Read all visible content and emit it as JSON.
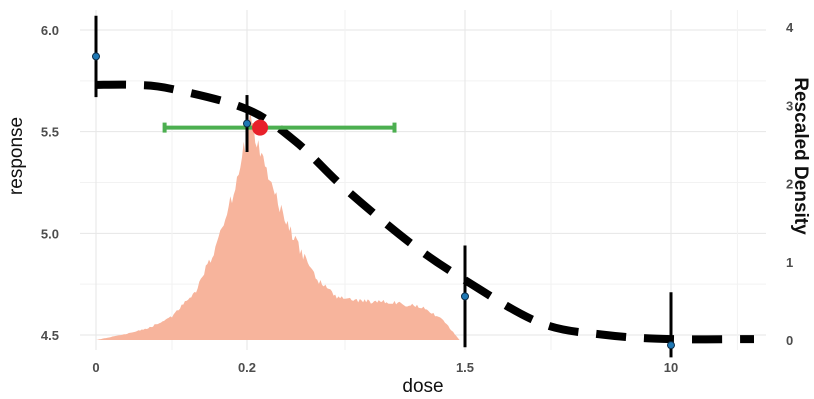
{
  "chart_data": {
    "type": "line",
    "xlabel": "dose",
    "ylabel": "response",
    "y2label": "Rescaled Density",
    "x_tick_labels": [
      "0",
      "0.2",
      "1.5",
      "10"
    ],
    "y_ticks": [
      4.5,
      5.0,
      5.5,
      6.0
    ],
    "y_tick_labels": [
      "4.5",
      "5.0",
      "5.5",
      "6.0"
    ],
    "y2_ticks": [
      0,
      1,
      2,
      3,
      4
    ],
    "y2_tick_labels": [
      "0",
      "1",
      "2",
      "3",
      "4"
    ],
    "ylim": [
      4.47,
      6.07
    ],
    "y2lim": [
      0,
      4.07
    ],
    "grid": true,
    "colors": {
      "curve": "#000000",
      "observed": "#1f78b4",
      "interval": "#4caf50",
      "estimate": "#e8202a",
      "density": "#f7b49c"
    },
    "series": [
      {
        "type": "dashed-line",
        "points": [
          {
            "dose": "0",
            "response": 5.73
          },
          {
            "dose": "0.05",
            "response": 5.73
          },
          {
            "dose": "0.1",
            "response": 5.71
          },
          {
            "dose": "0.2",
            "response": 5.61
          },
          {
            "dose": "0.35",
            "response": 5.45
          },
          {
            "dose": "0.6",
            "response": 5.22
          },
          {
            "dose": "1.0",
            "response": 4.95
          },
          {
            "dose": "1.5",
            "response": 4.77
          },
          {
            "dose": "3",
            "response": 4.56
          },
          {
            "dose": "6",
            "response": 4.5
          },
          {
            "dose": "10",
            "response": 4.48
          },
          {
            "dose": "20",
            "response": 4.48
          }
        ]
      },
      {
        "type": "points-with-error-bars",
        "points": [
          {
            "dose": "0",
            "response": 5.87,
            "lower": 5.67,
            "upper": 6.07
          },
          {
            "dose": "0.2",
            "response": 5.54,
            "lower": 5.4,
            "upper": 5.68
          },
          {
            "dose": "1.5",
            "response": 4.69,
            "lower": 4.44,
            "upper": 4.94
          },
          {
            "dose": "10",
            "response": 4.45,
            "lower": 4.39,
            "upper": 4.71
          }
        ]
      },
      {
        "type": "horizontal-interval",
        "response": 5.52,
        "from_dose": "0.09",
        "to_dose": "0.9"
      },
      {
        "type": "point-estimate",
        "dose": "0.24",
        "response": 5.52
      },
      {
        "type": "density-histogram",
        "axis": "right",
        "points": [
          {
            "dose": "0",
            "density": 0.0
          },
          {
            "dose": "0.04",
            "density": 0.08
          },
          {
            "dose": "0.07",
            "density": 0.16
          },
          {
            "dose": "0.1",
            "density": 0.3
          },
          {
            "dose": "0.13",
            "density": 0.6
          },
          {
            "dose": "0.16",
            "density": 1.2
          },
          {
            "dose": "0.18",
            "density": 1.8
          },
          {
            "dose": "0.2",
            "density": 2.6
          },
          {
            "dose": "0.21",
            "density": 2.85
          },
          {
            "dose": "0.23",
            "density": 2.55
          },
          {
            "dose": "0.25",
            "density": 2.35
          },
          {
            "dose": "0.28",
            "density": 1.9
          },
          {
            "dose": "0.32",
            "density": 1.5
          },
          {
            "dose": "0.37",
            "density": 1.15
          },
          {
            "dose": "0.45",
            "density": 0.8
          },
          {
            "dose": "0.55",
            "density": 0.55
          },
          {
            "dose": "0.7",
            "density": 0.5
          },
          {
            "dose": "0.9",
            "density": 0.48
          },
          {
            "dose": "1.1",
            "density": 0.42
          },
          {
            "dose": "1.3",
            "density": 0.25
          },
          {
            "dose": "1.45",
            "density": 0.0
          }
        ]
      }
    ]
  }
}
